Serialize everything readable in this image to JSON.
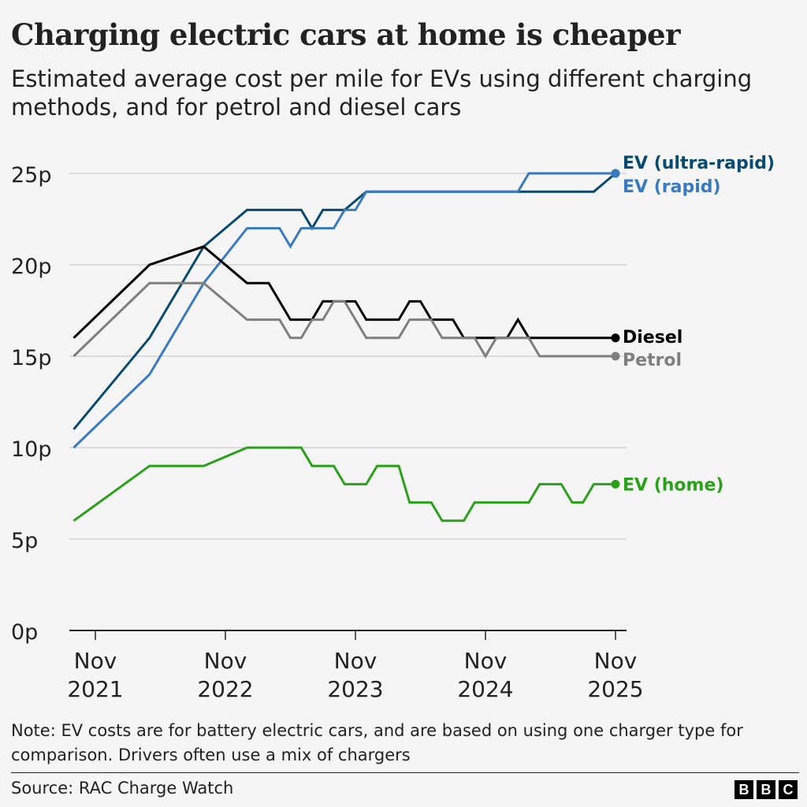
{
  "title": "Charging electric cars at home is cheaper",
  "subtitle": "Estimated average cost per mile for EVs using different charging methods, and for petrol and diesel cars",
  "note": "Note: EV costs are for battery electric cars, and are based on using one charger type for comparison. Drivers often use a mix of chargers",
  "source": "Source: RAC Charge Watch",
  "logo": "BBC",
  "chart_data": {
    "type": "line",
    "xlabel": "",
    "ylabel": "",
    "ylim": [
      0,
      25
    ],
    "yticks": [
      0,
      5,
      10,
      15,
      20,
      25
    ],
    "ytick_labels": [
      "0p",
      "5p",
      "10p",
      "15p",
      "20p",
      "25p"
    ],
    "xticks": [
      {
        "date": "2021-11",
        "label": [
          "Nov",
          "2021"
        ]
      },
      {
        "date": "2022-11",
        "label": [
          "Nov",
          "2022"
        ]
      },
      {
        "date": "2023-11",
        "label": [
          "Nov",
          "2023"
        ]
      },
      {
        "date": "2024-11",
        "label": [
          "Nov",
          "2024"
        ]
      },
      {
        "date": "2025-11",
        "label": [
          "Nov",
          "2025"
        ]
      }
    ],
    "grid": true,
    "legend": "direct labels at line ends (right)",
    "series": [
      {
        "name": "EV (ultra-rapid)",
        "color": "#0a4a6e",
        "labelOffset": -14,
        "points": [
          [
            "2021-09",
            11
          ],
          [
            "2022-04",
            16
          ],
          [
            "2022-09",
            21
          ],
          [
            "2023-01",
            23
          ],
          [
            "2023-06",
            23
          ],
          [
            "2023-07",
            22
          ],
          [
            "2023-08",
            23
          ],
          [
            "2023-10",
            23
          ],
          [
            "2023-12",
            24
          ],
          [
            "2025-09",
            24
          ],
          [
            "2025-11",
            25
          ]
        ]
      },
      {
        "name": "EV (rapid)",
        "color": "#3a7bbf",
        "labelOffset": 16,
        "points": [
          [
            "2021-09",
            10
          ],
          [
            "2022-04",
            14
          ],
          [
            "2022-09",
            19
          ],
          [
            "2023-01",
            22
          ],
          [
            "2023-04",
            22
          ],
          [
            "2023-05",
            21
          ],
          [
            "2023-06",
            22
          ],
          [
            "2023-09",
            22
          ],
          [
            "2023-10",
            23
          ],
          [
            "2023-11",
            23
          ],
          [
            "2023-12",
            24
          ],
          [
            "2025-02",
            24
          ],
          [
            "2025-03",
            25
          ],
          [
            "2025-11",
            25
          ]
        ]
      },
      {
        "name": "Diesel",
        "color": "#000000",
        "labelOffset": -2,
        "points": [
          [
            "2021-09",
            16
          ],
          [
            "2022-04",
            20
          ],
          [
            "2022-09",
            21
          ],
          [
            "2023-01",
            19
          ],
          [
            "2023-03",
            19
          ],
          [
            "2023-05",
            17
          ],
          [
            "2023-07",
            17
          ],
          [
            "2023-08",
            18
          ],
          [
            "2023-11",
            18
          ],
          [
            "2023-12",
            17
          ],
          [
            "2024-03",
            17
          ],
          [
            "2024-04",
            18
          ],
          [
            "2024-05",
            18
          ],
          [
            "2024-06",
            17
          ],
          [
            "2024-08",
            17
          ],
          [
            "2024-09",
            16
          ],
          [
            "2025-01",
            16
          ],
          [
            "2025-02",
            17
          ],
          [
            "2025-03",
            16
          ],
          [
            "2025-11",
            16
          ]
        ]
      },
      {
        "name": "Petrol",
        "color": "#7f7f7f",
        "labelOffset": 4,
        "points": [
          [
            "2021-09",
            15
          ],
          [
            "2022-04",
            19
          ],
          [
            "2022-09",
            19
          ],
          [
            "2023-01",
            17
          ],
          [
            "2023-04",
            17
          ],
          [
            "2023-05",
            16
          ],
          [
            "2023-06",
            16
          ],
          [
            "2023-07",
            17
          ],
          [
            "2023-08",
            17
          ],
          [
            "2023-09",
            18
          ],
          [
            "2023-10",
            18
          ],
          [
            "2023-12",
            16
          ],
          [
            "2024-03",
            16
          ],
          [
            "2024-04",
            17
          ],
          [
            "2024-06",
            17
          ],
          [
            "2024-07",
            16
          ],
          [
            "2024-10",
            16
          ],
          [
            "2024-11",
            15
          ],
          [
            "2024-12",
            16
          ],
          [
            "2025-03",
            16
          ],
          [
            "2025-04",
            15
          ],
          [
            "2025-11",
            15
          ]
        ]
      },
      {
        "name": "EV (home)",
        "color": "#2ca01c",
        "labelOffset": 0,
        "points": [
          [
            "2021-09",
            6
          ],
          [
            "2022-04",
            9
          ],
          [
            "2022-09",
            9
          ],
          [
            "2023-01",
            10
          ],
          [
            "2023-06",
            10
          ],
          [
            "2023-07",
            9
          ],
          [
            "2023-09",
            9
          ],
          [
            "2023-10",
            8
          ],
          [
            "2023-12",
            8
          ],
          [
            "2024-01",
            9
          ],
          [
            "2024-03",
            9
          ],
          [
            "2024-04",
            7
          ],
          [
            "2024-06",
            7
          ],
          [
            "2024-07",
            6
          ],
          [
            "2024-09",
            6
          ],
          [
            "2024-10",
            7
          ],
          [
            "2025-03",
            7
          ],
          [
            "2025-04",
            8
          ],
          [
            "2025-06",
            8
          ],
          [
            "2025-07",
            7
          ],
          [
            "2025-08",
            7
          ],
          [
            "2025-09",
            8
          ],
          [
            "2025-11",
            8
          ]
        ]
      }
    ]
  }
}
